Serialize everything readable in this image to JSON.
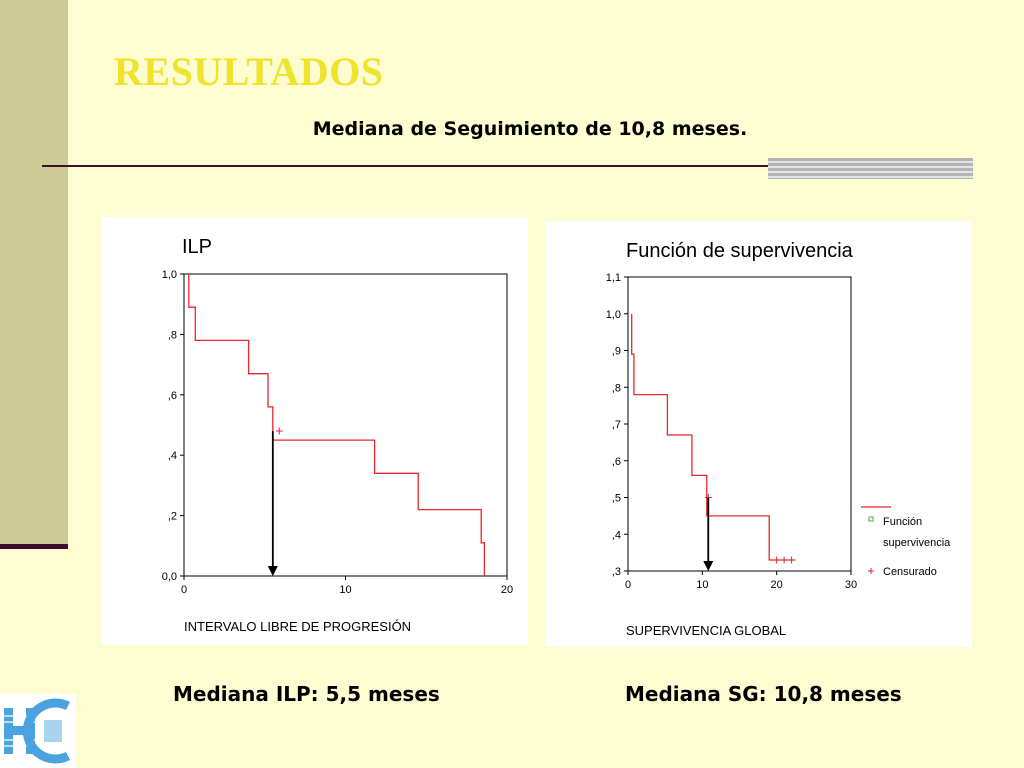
{
  "slide": {
    "title": "RESULTADOS",
    "subtitle": "Mediana de Seguimiento de 10,8 meses.",
    "caption_left": "Mediana ILP: 5,5 meses",
    "caption_right": "Mediana SG: 10,8 meses"
  },
  "colors": {
    "title": "#f0e32c",
    "curve": "#e8272f",
    "background": "#fefdd2",
    "sidebar": "#cfcb96"
  },
  "chart_data": [
    {
      "type": "line",
      "title": "ILP",
      "xlabel": "INTERVALO LIBRE DE PROGRESIÓN",
      "ylabel": "",
      "xlim": [
        0,
        20
      ],
      "ylim": [
        0,
        1.0
      ],
      "x_ticks": [
        0,
        10,
        20
      ],
      "x_tick_labels": [
        "0",
        "10",
        "20"
      ],
      "y_ticks": [
        0,
        0.2,
        0.4,
        0.6,
        0.8,
        1.0
      ],
      "y_tick_labels": [
        "0,0",
        ",2",
        ",4",
        ",6",
        ",8",
        "1,0"
      ],
      "series": [
        {
          "step": [
            [
              0.3,
              1.0
            ],
            [
              0.3,
              0.89
            ],
            [
              0.7,
              0.89
            ],
            [
              0.7,
              0.78
            ],
            [
              4.0,
              0.78
            ],
            [
              4.0,
              0.67
            ],
            [
              5.2,
              0.67
            ],
            [
              5.2,
              0.56
            ],
            [
              5.5,
              0.56
            ],
            [
              5.5,
              0.45
            ],
            [
              11.8,
              0.45
            ],
            [
              11.8,
              0.34
            ],
            [
              14.5,
              0.34
            ],
            [
              14.5,
              0.22
            ],
            [
              18.4,
              0.22
            ],
            [
              18.4,
              0.11
            ],
            [
              18.6,
              0.11
            ],
            [
              18.6,
              0
            ]
          ],
          "censored": [
            [
              5.9,
              0.48
            ]
          ]
        }
      ],
      "annotation": {
        "type": "arrow",
        "x": 5.5,
        "from_y": 0.48,
        "to_y": 0
      }
    },
    {
      "type": "line",
      "title": "Función de supervivencia",
      "xlabel": "SUPERVIVENCIA GLOBAL",
      "ylabel": "",
      "xlim": [
        0,
        30
      ],
      "ylim": [
        0.3,
        1.1
      ],
      "x_ticks": [
        0,
        10,
        20,
        30
      ],
      "x_tick_labels": [
        "0",
        "10",
        "20",
        "30"
      ],
      "y_ticks": [
        0.3,
        0.4,
        0.5,
        0.6,
        0.7,
        0.8,
        0.9,
        1.0,
        1.1
      ],
      "y_tick_labels": [
        ",3",
        ",4",
        ",5",
        ",6",
        ",7",
        ",8",
        ",9",
        "1,0",
        "1,1"
      ],
      "legend": {
        "position": "right",
        "entries": [
          "Función supervivencia",
          "Censurado"
        ]
      },
      "series": [
        {
          "name": "Función supervivencia",
          "step": [
            [
              0.5,
              1.0
            ],
            [
              0.5,
              0.89
            ],
            [
              0.8,
              0.89
            ],
            [
              0.8,
              0.78
            ],
            [
              5.3,
              0.78
            ],
            [
              5.3,
              0.67
            ],
            [
              8.6,
              0.67
            ],
            [
              8.6,
              0.56
            ],
            [
              10.6,
              0.56
            ],
            [
              10.6,
              0.45
            ],
            [
              19.0,
              0.45
            ],
            [
              19.0,
              0.33
            ],
            [
              22.5,
              0.33
            ]
          ],
          "censored": [
            [
              10.8,
              0.5
            ],
            [
              20.0,
              0.33
            ],
            [
              21.0,
              0.33
            ],
            [
              22.0,
              0.33
            ]
          ]
        }
      ],
      "annotation": {
        "type": "arrow",
        "x": 10.8,
        "from_y": 0.5,
        "to_y": 0.3
      }
    }
  ]
}
